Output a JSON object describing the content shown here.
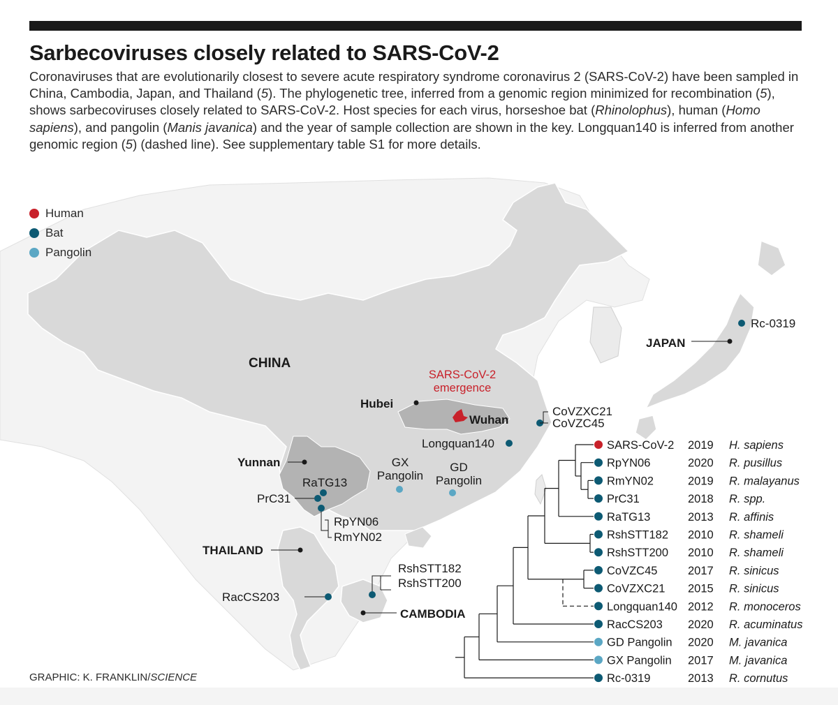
{
  "header": {
    "title": "Sarbecoviruses closely related to SARS-CoV-2",
    "desc_p1": "Coronaviruses that are evolutionarily closest to severe acute respiratory syndrome coronavirus 2 (SARS-CoV-2) have been sampled in China, Cambodia, Japan, and Thailand (",
    "desc_r1": "5",
    "desc_p2": "). The phylogenetic tree, inferred from a genomic region minimized for recombination (",
    "desc_r2": "5",
    "desc_p3": "), shows sarbecoviruses closely related to SARS-CoV-2. Host species for each virus, horseshoe bat (",
    "desc_g1": "Rhinolophus",
    "desc_p4": "), human (",
    "desc_g2": "Homo sapiens",
    "desc_p5": "), and pangolin (",
    "desc_g3": "Manis javanica",
    "desc_p6": ") and the year of sample collection are shown in the key. Longquan140 is inferred from another genomic region (",
    "desc_r3": "5",
    "desc_p7": ") (dashed line). See supplementary table S1 for more details."
  },
  "colors": {
    "human": "#c8212a",
    "bat": "#0d5a73",
    "pangolin": "#5ba7c4",
    "land_highlight": "#d9d9d9",
    "land": "#ebebeb",
    "province": "#b3b3b3"
  },
  "legend": [
    {
      "label": "Human",
      "color": "#c8212a"
    },
    {
      "label": "Bat",
      "color": "#0d5a73"
    },
    {
      "label": "Pangolin",
      "color": "#5ba7c4"
    }
  ],
  "map_labels": {
    "china": "CHINA",
    "japan": "JAPAN",
    "thailand": "THAILAND",
    "cambodia": "CAMBODIA",
    "hubei": "Hubei",
    "yunnan": "Yunnan",
    "wuhan": "Wuhan",
    "emergence_l1": "SARS-CoV-2",
    "emergence_l2": "emergence",
    "rc0319": "Rc-0319",
    "covzxc21": "CoVZXC21",
    "covzc45": "CoVZC45",
    "longquan140": "Longquan140",
    "gx_l1": "GX",
    "gx_l2": "Pangolin",
    "gd_l1": "GD",
    "gd_l2": "Pangolin",
    "ratg13": "RaTG13",
    "prc31": "PrC31",
    "rpyn06": "RpYN06",
    "rmyn02": "RmYN02",
    "rshstt182": "RshSTT182",
    "rshstt200": "RshSTT200",
    "raccs203": "RacCS203"
  },
  "tree_rows": [
    {
      "name": "SARS-CoV-2",
      "year": "2019",
      "host": "H. sapiens",
      "type": "human"
    },
    {
      "name": "RpYN06",
      "year": "2020",
      "host": "R. pusillus",
      "type": "bat"
    },
    {
      "name": "RmYN02",
      "year": "2019",
      "host": "R. malayanus",
      "type": "bat"
    },
    {
      "name": "PrC31",
      "year": "2018",
      "host": "R. spp.",
      "type": "bat"
    },
    {
      "name": "RaTG13",
      "year": "2013",
      "host": "R. affinis",
      "type": "bat"
    },
    {
      "name": "RshSTT182",
      "year": "2010",
      "host": "R. shameli",
      "type": "bat"
    },
    {
      "name": "RshSTT200",
      "year": "2010",
      "host": "R. shameli",
      "type": "bat"
    },
    {
      "name": "CoVZC45",
      "year": "2017",
      "host": "R. sinicus",
      "type": "bat"
    },
    {
      "name": "CoVZXC21",
      "year": "2015",
      "host": "R. sinicus",
      "type": "bat"
    },
    {
      "name": "Longquan140",
      "year": "2012",
      "host": "R. monoceros",
      "type": "bat"
    },
    {
      "name": "RacCS203",
      "year": "2020",
      "host": "R. acuminatus",
      "type": "bat"
    },
    {
      "name": "GD Pangolin",
      "year": "2020",
      "host": "M. javanica",
      "type": "pangolin"
    },
    {
      "name": "GX Pangolin",
      "year": "2017",
      "host": "M. javanica",
      "type": "pangolin"
    },
    {
      "name": "Rc-0319",
      "year": "2013",
      "host": "R. cornutus",
      "type": "bat"
    }
  ],
  "credit": {
    "prefix": "GRAPHIC: K. FRANKLIN/",
    "source": "SCIENCE"
  }
}
